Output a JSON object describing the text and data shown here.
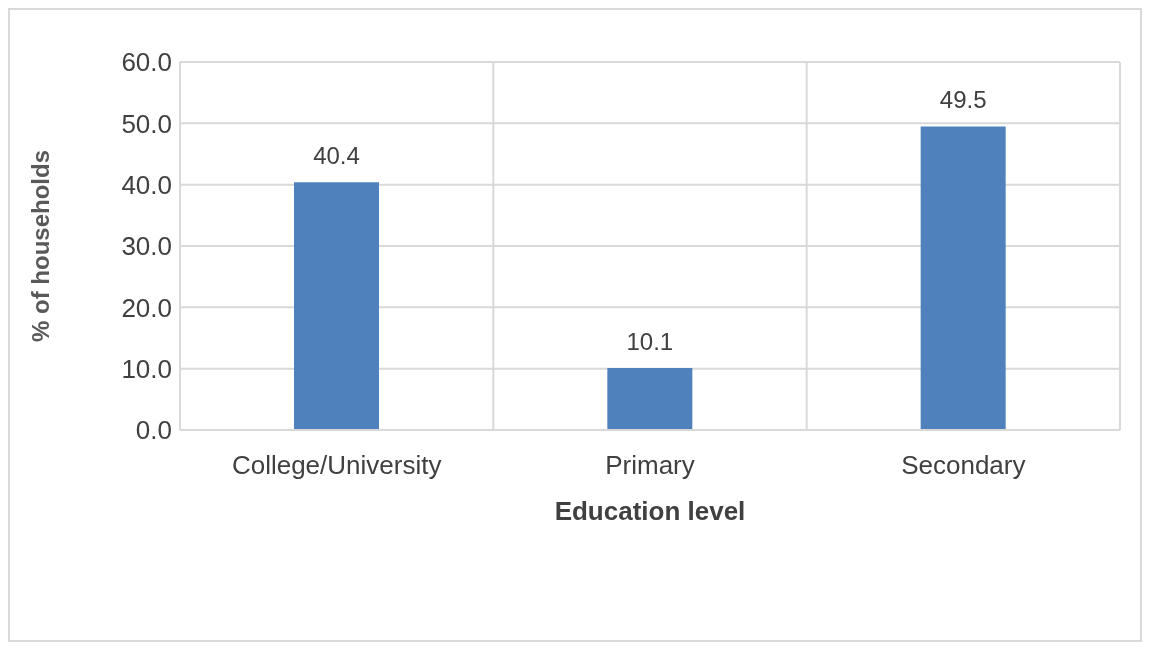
{
  "chart_data": {
    "type": "bar",
    "xlabel": "Education level",
    "ylabel": "% of households",
    "categories": [
      "College/University",
      "Primary",
      "Secondary"
    ],
    "values": [
      40.4,
      10.1,
      49.5
    ],
    "color": "#4f81bd",
    "ylim": [
      0,
      60
    ],
    "yticks": [
      {
        "value": 0,
        "label": "0.0"
      },
      {
        "value": 10,
        "label": "10.0"
      },
      {
        "value": 20,
        "label": "20.0"
      },
      {
        "value": 30,
        "label": "30.0"
      },
      {
        "value": 40,
        "label": "40.0"
      },
      {
        "value": 50,
        "label": "50.0"
      },
      {
        "value": 60,
        "label": "60.0"
      }
    ],
    "grid": true,
    "data_labels": true
  }
}
